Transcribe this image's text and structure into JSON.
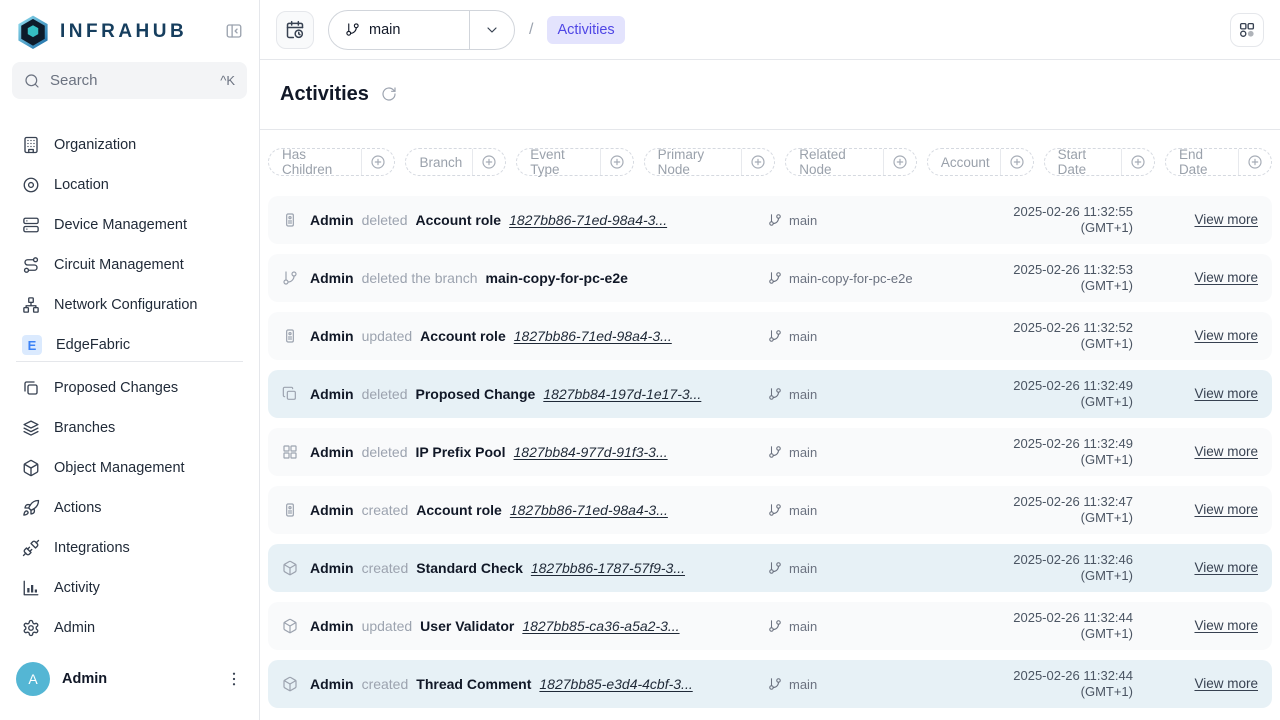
{
  "brand": {
    "name": "INFRAHUB"
  },
  "sidebar": {
    "search": {
      "placeholder": "Search",
      "shortcut": "^K"
    },
    "groups": [
      {
        "items": [
          {
            "icon": "building-icon",
            "label": "Organization"
          },
          {
            "icon": "map-pin-icon",
            "label": "Location"
          },
          {
            "icon": "server-icon",
            "label": "Device Management"
          },
          {
            "icon": "route-icon",
            "label": "Circuit Management"
          },
          {
            "icon": "network-icon",
            "label": "Network Configuration"
          },
          {
            "icon": "letter-badge-icon",
            "letter": "E",
            "label": "EdgeFabric"
          }
        ]
      },
      {
        "items": [
          {
            "icon": "proposed-changes-icon",
            "label": "Proposed Changes"
          },
          {
            "icon": "branches-icon",
            "label": "Branches"
          },
          {
            "icon": "cube-icon",
            "label": "Object Management"
          },
          {
            "icon": "rocket-icon",
            "label": "Actions"
          },
          {
            "icon": "plug-icon",
            "label": "Integrations"
          },
          {
            "icon": "bar-chart-icon",
            "label": "Activity"
          },
          {
            "icon": "gear-icon",
            "label": "Admin"
          }
        ]
      }
    ],
    "user": {
      "initial": "A",
      "name": "Admin"
    }
  },
  "topbar": {
    "branch_selector": {
      "value": "main"
    },
    "breadcrumb": {
      "separator": "/",
      "current": "Activities"
    }
  },
  "page": {
    "title": "Activities"
  },
  "filters": [
    {
      "label": "Has Children"
    },
    {
      "label": "Branch"
    },
    {
      "label": "Event Type"
    },
    {
      "label": "Primary Node"
    },
    {
      "label": "Related Node"
    },
    {
      "label": "Account"
    },
    {
      "label": "Start Date"
    },
    {
      "label": "End Date"
    }
  ],
  "activities": [
    {
      "icon": "id-badge-icon",
      "actor": "Admin",
      "action": "deleted",
      "object_type": "Account role",
      "object_id": "1827bb86-71ed-98a4-3...",
      "branch": "main",
      "date": "2025-02-26 11:32:55",
      "timezone": "(GMT+1)",
      "view_more_label": "View more",
      "highlighted": false
    },
    {
      "icon": "git-branch-icon",
      "actor": "Admin",
      "action": "deleted the branch",
      "object_type": "main-copy-for-pc-e2e",
      "object_id": "",
      "branch": "main-copy-for-pc-e2e",
      "date": "2025-02-26 11:32:53",
      "timezone": "(GMT+1)",
      "view_more_label": "View more",
      "highlighted": false
    },
    {
      "icon": "id-badge-icon",
      "actor": "Admin",
      "action": "updated",
      "object_type": "Account role",
      "object_id": "1827bb86-71ed-98a4-3...",
      "branch": "main",
      "date": "2025-02-26 11:32:52",
      "timezone": "(GMT+1)",
      "view_more_label": "View more",
      "highlighted": false
    },
    {
      "icon": "copy-icon",
      "actor": "Admin",
      "action": "deleted",
      "object_type": "Proposed Change",
      "object_id": "1827bb84-197d-1e17-3...",
      "branch": "main",
      "date": "2025-02-26 11:32:49",
      "timezone": "(GMT+1)",
      "view_more_label": "View more",
      "highlighted": true
    },
    {
      "icon": "grid-icon",
      "actor": "Admin",
      "action": "deleted",
      "object_type": "IP Prefix Pool",
      "object_id": "1827bb84-977d-91f3-3...",
      "branch": "main",
      "date": "2025-02-26 11:32:49",
      "timezone": "(GMT+1)",
      "view_more_label": "View more",
      "highlighted": false
    },
    {
      "icon": "id-badge-icon",
      "actor": "Admin",
      "action": "created",
      "object_type": "Account role",
      "object_id": "1827bb86-71ed-98a4-3...",
      "branch": "main",
      "date": "2025-02-26 11:32:47",
      "timezone": "(GMT+1)",
      "view_more_label": "View more",
      "highlighted": false
    },
    {
      "icon": "cube-icon",
      "actor": "Admin",
      "action": "created",
      "object_type": "Standard Check",
      "object_id": "1827bb86-1787-57f9-3...",
      "branch": "main",
      "date": "2025-02-26 11:32:46",
      "timezone": "(GMT+1)",
      "view_more_label": "View more",
      "highlighted": true
    },
    {
      "icon": "cube-icon",
      "actor": "Admin",
      "action": "updated",
      "object_type": "User Validator",
      "object_id": "1827bb85-ca36-a5a2-3...",
      "branch": "main",
      "date": "2025-02-26 11:32:44",
      "timezone": "(GMT+1)",
      "view_more_label": "View more",
      "highlighted": false
    },
    {
      "icon": "cube-icon",
      "actor": "Admin",
      "action": "created",
      "object_type": "Thread Comment",
      "object_id": "1827bb85-e3d4-4cbf-3...",
      "branch": "main",
      "date": "2025-02-26 11:32:44",
      "timezone": "(GMT+1)",
      "view_more_label": "View more",
      "highlighted": true
    }
  ],
  "colors": {
    "accent_indigo": "#4f46e5",
    "breadcrumb_badge_bg": "#e3e3fd",
    "row_bg": "#f9fafb",
    "row_highlight_bg": "#e7f1f6",
    "avatar_bg": "#54b6d4",
    "brand_navy": "#163e5e"
  }
}
